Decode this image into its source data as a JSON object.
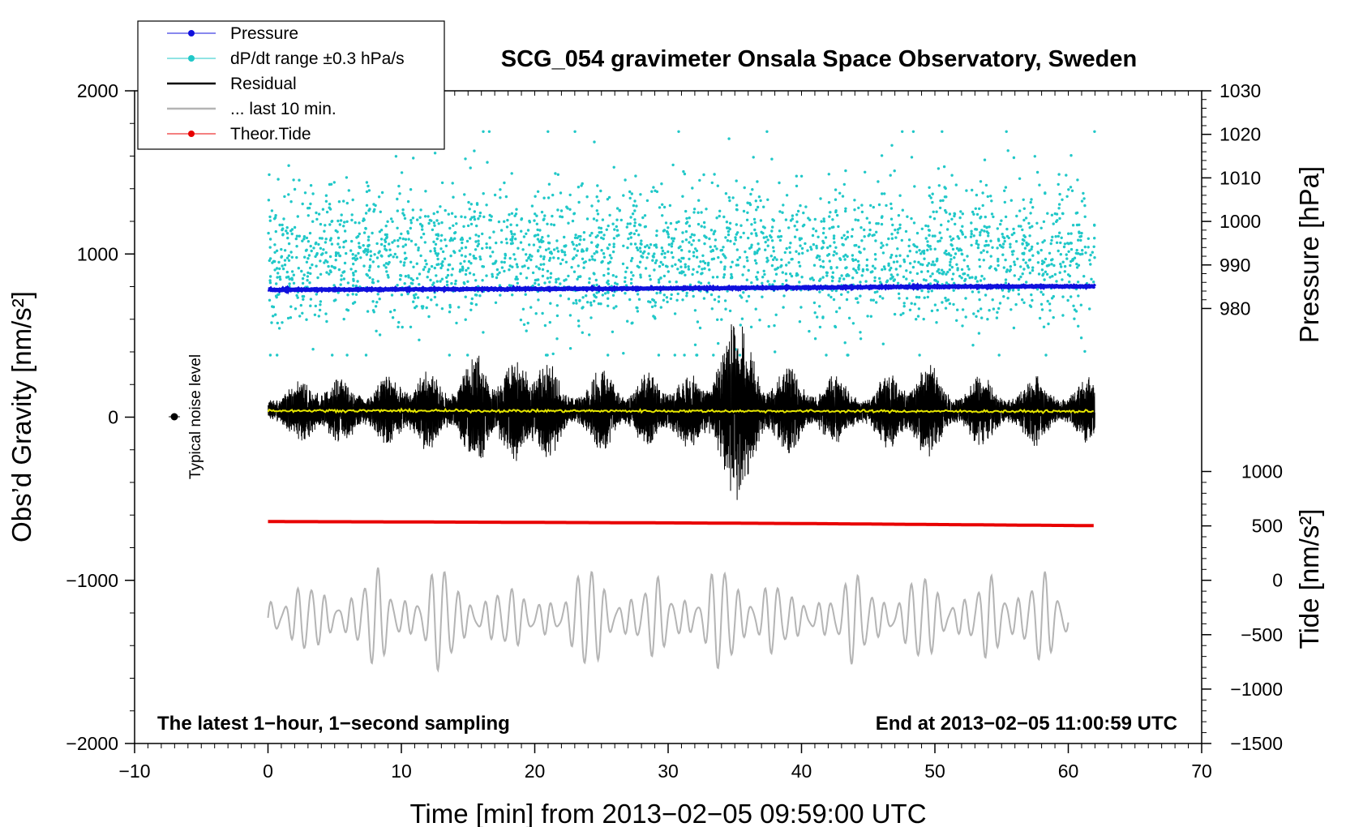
{
  "chart_data": {
    "type": "line",
    "title": "SCG_054 gravimeter Onsala Space Observatory, Sweden",
    "xlabel": "Time [min] from 2013−02−05 09:59:00 UTC",
    "ylabel_left": "Obs’d Gravity [nm/s²]",
    "ylabel_right_upper": "Pressure [hPa]",
    "ylabel_right_lower": "Tide [nm/s²]",
    "xlim": [
      -10,
      70
    ],
    "ylim_left": [
      -2000,
      2000
    ],
    "x_ticks": [
      {
        "value": -10,
        "label": "−10"
      },
      {
        "value": 0,
        "label": "0"
      },
      {
        "value": 10,
        "label": "10"
      },
      {
        "value": 20,
        "label": "20"
      },
      {
        "value": 30,
        "label": "30"
      },
      {
        "value": 40,
        "label": "40"
      },
      {
        "value": 50,
        "label": "50"
      },
      {
        "value": 60,
        "label": "60"
      },
      {
        "value": 70,
        "label": "70"
      }
    ],
    "y_left_ticks": [
      {
        "value": 2000,
        "label": "2000"
      },
      {
        "value": 1000,
        "label": "1000"
      },
      {
        "value": 0,
        "label": "0"
      },
      {
        "value": -1000,
        "label": "−1000"
      },
      {
        "value": -2000,
        "label": "−2000"
      }
    ],
    "pressure_axis": {
      "map": {
        "p1": 1030,
        "g1": 2000,
        "p2": 980,
        "g2": 666
      },
      "ticks": [
        {
          "value": 1030,
          "label": "1030"
        },
        {
          "value": 1020,
          "label": "1020"
        },
        {
          "value": 1010,
          "label": "1010"
        },
        {
          "value": 1000,
          "label": "1000"
        },
        {
          "value": 990,
          "label": "990"
        },
        {
          "value": 980,
          "label": "980"
        }
      ]
    },
    "tide_axis": {
      "map": {
        "t1": -1500,
        "g1": -2000,
        "t2": 1000,
        "g2": -333
      },
      "ticks": [
        {
          "value": 1000,
          "label": "1000"
        },
        {
          "value": 500,
          "label": "500"
        },
        {
          "value": 0,
          "label": "0"
        },
        {
          "value": -500,
          "label": "−500"
        },
        {
          "value": -1000,
          "label": "−1000"
        },
        {
          "value": -1500,
          "label": "−1500"
        }
      ]
    },
    "legend": {
      "position": "top-left",
      "entries": [
        {
          "label": "Pressure",
          "color": "#1010dd",
          "marker": "dot"
        },
        {
          "label": "dP/dt range ±0.3 hPa/s",
          "color": "#20c8c8",
          "marker": "dot"
        },
        {
          "label": "Residual",
          "color": "#000000",
          "marker": "line"
        },
        {
          "label": "... last 10 min.",
          "color": "#b4b4b4",
          "marker": "line"
        },
        {
          "label": "Theor.Tide",
          "color": "#e80000",
          "marker": "dot"
        }
      ]
    },
    "series": {
      "pressure": {
        "name": "Pressure",
        "color": "#1010dd",
        "x": [
          0,
          10,
          20,
          30,
          40,
          50,
          62
        ],
        "y_hpa": [
          984.3,
          984.4,
          984.5,
          984.6,
          984.8,
          985.0,
          985.1
        ]
      },
      "dpdt": {
        "name": "dP/dt range ±0.3 hPa/s",
        "color": "#20c8c8",
        "x_range": [
          0,
          62
        ],
        "center_gravity": 1000,
        "spread_gravity": 220
      },
      "residual": {
        "name": "Residual",
        "color": "#000000",
        "x_range": [
          0,
          62
        ],
        "center_gravity": 40,
        "bursts": [
          {
            "x": 2.5,
            "amp": 200
          },
          {
            "x": 5.5,
            "amp": 220
          },
          {
            "x": 9.0,
            "amp": 230
          },
          {
            "x": 12.0,
            "amp": 260
          },
          {
            "x": 15.5,
            "amp": 420
          },
          {
            "x": 18.5,
            "amp": 380
          },
          {
            "x": 21.0,
            "amp": 320
          },
          {
            "x": 25.0,
            "amp": 280
          },
          {
            "x": 28.5,
            "amp": 250
          },
          {
            "x": 31.5,
            "amp": 240
          },
          {
            "x": 34.5,
            "amp": 520
          },
          {
            "x": 35.8,
            "amp": 480
          },
          {
            "x": 39.0,
            "amp": 300
          },
          {
            "x": 42.5,
            "amp": 240
          },
          {
            "x": 46.5,
            "amp": 240
          },
          {
            "x": 49.5,
            "amp": 330
          },
          {
            "x": 53.5,
            "amp": 240
          },
          {
            "x": 57.5,
            "amp": 220
          },
          {
            "x": 61.5,
            "amp": 200
          }
        ]
      },
      "smoothed": {
        "name": "smoothed residual",
        "color": "#e6e600",
        "x": [
          0,
          62
        ],
        "y": [
          40,
          35
        ]
      },
      "last10": {
        "name": "... last 10 min.",
        "color": "#b4b4b4",
        "x_range": [
          0,
          60
        ],
        "center_gravity": -1230,
        "bursts": [
          {
            "x": 3,
            "amp": 150
          },
          {
            "x": 8,
            "amp": 250
          },
          {
            "x": 13,
            "amp": 300
          },
          {
            "x": 18,
            "amp": 120
          },
          {
            "x": 24,
            "amp": 300
          },
          {
            "x": 29,
            "amp": 180
          },
          {
            "x": 34,
            "amp": 300
          },
          {
            "x": 38,
            "amp": 150
          },
          {
            "x": 44,
            "amp": 220
          },
          {
            "x": 49,
            "amp": 220
          },
          {
            "x": 54,
            "amp": 190
          },
          {
            "x": 58,
            "amp": 220
          }
        ]
      },
      "tide": {
        "name": "Theor.Tide",
        "color": "#e80000",
        "x": [
          0,
          10,
          20,
          30,
          40,
          50,
          62
        ],
        "y_gravity": [
          -640,
          -642,
          -645,
          -648,
          -652,
          -658,
          -665
        ]
      }
    },
    "noise_marker": {
      "x": -7,
      "y": 0,
      "label": "Typical noise level"
    },
    "notes": {
      "left": "The latest 1−hour, 1−second sampling",
      "right": "End at 2013−02−05 11:00:59 UTC"
    }
  }
}
